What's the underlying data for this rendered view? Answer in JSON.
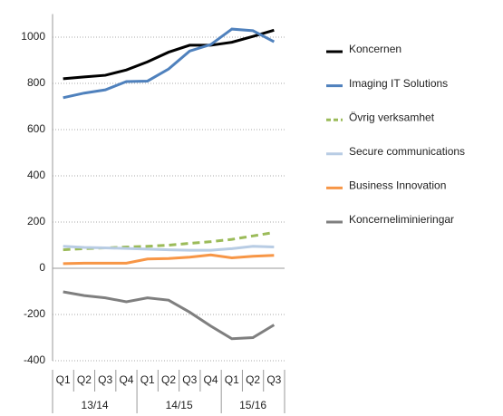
{
  "chart_data": {
    "type": "line",
    "groups": [
      {
        "label": "13/14",
        "categories": [
          "Q1",
          "Q2",
          "Q3",
          "Q4"
        ]
      },
      {
        "label": "14/15",
        "categories": [
          "Q1",
          "Q2",
          "Q3",
          "Q4"
        ]
      },
      {
        "label": "15/16",
        "categories": [
          "Q1",
          "Q2",
          "Q3"
        ]
      }
    ],
    "series": [
      {
        "name": "Koncernen",
        "color": "#000000",
        "values": [
          820,
          828,
          835,
          858,
          893,
          935,
          965,
          965,
          978,
          1003,
          1030
        ]
      },
      {
        "name": "Imaging IT Solutions",
        "color": "#4f81bd",
        "values": [
          738,
          758,
          772,
          808,
          810,
          862,
          940,
          968,
          1035,
          1028,
          980
        ]
      },
      {
        "name": "Övrig verksamhet",
        "color": "#9bbb59",
        "dashed": true,
        "values": [
          80,
          85,
          88,
          92,
          95,
          100,
          108,
          115,
          125,
          140,
          155
        ]
      },
      {
        "name": "Secure communications",
        "color": "#b8cce4",
        "values": [
          95,
          90,
          88,
          86,
          83,
          80,
          78,
          78,
          85,
          95,
          92
        ]
      },
      {
        "name": "Business Innovation",
        "color": "#f79646",
        "values": [
          20,
          22,
          22,
          22,
          40,
          42,
          48,
          58,
          45,
          52,
          56
        ]
      },
      {
        "name": "Koncerneliminieringar",
        "color": "#7f7f7f",
        "values": [
          -102,
          -118,
          -128,
          -145,
          -128,
          -138,
          -190,
          -250,
          -305,
          -300,
          -245
        ]
      }
    ],
    "ylim": [
      -400,
      1100
    ],
    "yticks": [
      -400,
      -200,
      0,
      200,
      400,
      600,
      800,
      1000
    ],
    "grid": true
  }
}
